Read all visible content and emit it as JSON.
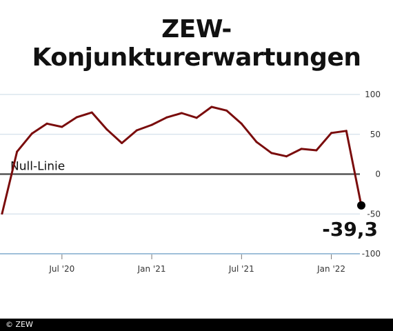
{
  "title": "ZEW-Konjunkturerwartungen",
  "footer": {
    "credit": "© ZEW"
  },
  "colors": {
    "line": "#7a0c0c",
    "zero_line": "#555555",
    "grid": "#c9d8e6",
    "bottom_axis": "#9fbfd9",
    "dot": "#000000"
  },
  "chart_data": {
    "type": "line",
    "title": "ZEW-Konjunkturerwartungen",
    "xlabel": "",
    "ylabel": "",
    "ylim": [
      -100,
      100
    ],
    "yticks": [
      100,
      50,
      0,
      -50,
      -100
    ],
    "ytick_labels": [
      "100",
      "50",
      "0",
      "-50",
      "-100"
    ],
    "xticks": [
      {
        "date": "2020-07",
        "label": "Jul '20"
      },
      {
        "date": "2021-01",
        "label": "Jan '21"
      },
      {
        "date": "2021-07",
        "label": "Jul '21"
      },
      {
        "date": "2022-01",
        "label": "Jan '22"
      }
    ],
    "grid": true,
    "reference_line": {
      "value": 0,
      "label": "Null-Linie"
    },
    "end_annotation": {
      "value": -39.3,
      "label": "-39,3"
    },
    "series": [
      {
        "x": [
          "2020-03",
          "2020-04",
          "2020-05",
          "2020-06",
          "2020-07",
          "2020-08",
          "2020-09",
          "2020-10",
          "2020-11",
          "2020-12",
          "2021-01",
          "2021-02",
          "2021-03",
          "2021-04",
          "2021-05",
          "2021-06",
          "2021-07",
          "2021-08",
          "2021-09",
          "2021-10",
          "2021-11",
          "2021-12",
          "2022-01",
          "2022-02",
          "2022-03"
        ],
        "values": [
          -49.5,
          28.2,
          51.0,
          63.4,
          59.3,
          71.5,
          77.4,
          56.1,
          39.0,
          55.0,
          61.8,
          71.2,
          76.6,
          70.7,
          84.4,
          79.8,
          63.3,
          40.4,
          26.5,
          22.3,
          31.7,
          29.9,
          51.7,
          54.3,
          -39.3
        ]
      }
    ]
  }
}
